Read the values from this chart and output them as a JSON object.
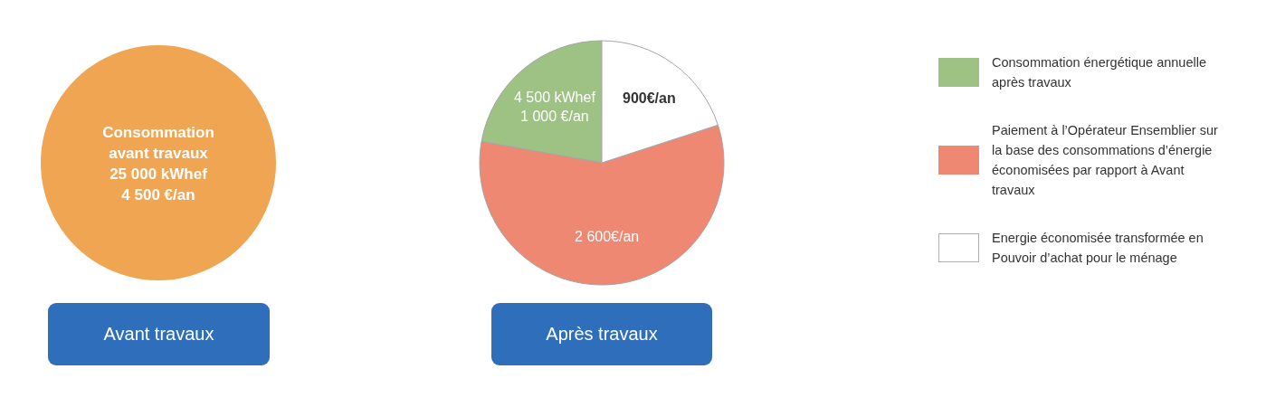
{
  "chart_data": [
    {
      "type": "pie",
      "xlabel": "Avant travaux",
      "categories": [
        "Consommation avant travaux"
      ],
      "values": [
        4500
      ],
      "colors": [
        "#f0a552"
      ],
      "value_labels": [
        "25 000 kWhef\n4 500 €/an"
      ]
    },
    {
      "type": "pie",
      "xlabel": "Après travaux",
      "categories": [
        "Consommation énergétique annuelle après travaux",
        "Paiement à l’Opérateur Ensemblier sur la base des consommations d’énergie économisées par rapport à Avant travaux",
        "Energie économisée transformée en Pouvoir d’achat pour le ménage"
      ],
      "values": [
        1000,
        2600,
        900
      ],
      "colors": [
        "#9dc283",
        "#ee8872",
        "#ffffff"
      ],
      "value_labels": [
        "4 500 kWhef\n1 000 €/an",
        "2 600€/an",
        "900€/an"
      ],
      "legend": "right"
    }
  ]
}
